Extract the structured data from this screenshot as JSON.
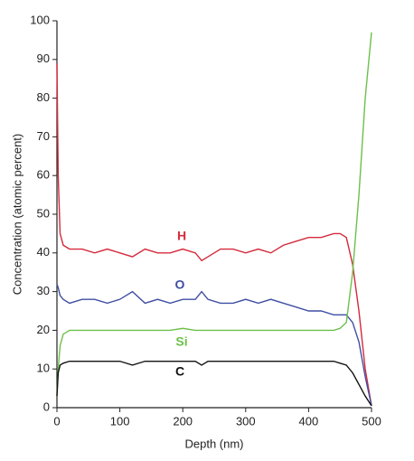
{
  "chart_data": {
    "type": "line",
    "x_label": "Depth (nm)",
    "y_label": "Concentration (atomic percent)",
    "x": [
      0,
      2,
      5,
      10,
      20,
      40,
      60,
      80,
      100,
      120,
      140,
      160,
      180,
      200,
      220,
      230,
      240,
      260,
      280,
      300,
      320,
      340,
      360,
      380,
      400,
      420,
      440,
      450,
      460,
      470,
      480,
      490,
      500
    ],
    "series": [
      {
        "name": "H",
        "color": "#d42a3c",
        "values": [
          89,
          60,
          45,
          42,
          41,
          41,
          40,
          41,
          40,
          39,
          41,
          40,
          40,
          41,
          40,
          38,
          39,
          41,
          41,
          40,
          41,
          40,
          42,
          43,
          44,
          44,
          45,
          45,
          44,
          37,
          25,
          10,
          0.5
        ]
      },
      {
        "name": "O",
        "color": "#3f4fa3",
        "values": [
          32,
          31,
          29,
          28,
          27,
          28,
          28,
          27,
          28,
          30,
          27,
          28,
          27,
          28,
          28,
          30,
          28,
          27,
          27,
          28,
          27,
          28,
          27,
          26,
          25,
          25,
          24,
          24,
          24,
          22,
          17,
          8,
          0.5
        ]
      },
      {
        "name": "Si",
        "color": "#6cc04a",
        "values": [
          3,
          10,
          16,
          19,
          20,
          20,
          20,
          20,
          20,
          20,
          20,
          20,
          20,
          20.5,
          20,
          20,
          20,
          20,
          20,
          20,
          20,
          20,
          20,
          20,
          20,
          20,
          20,
          20.5,
          22,
          35,
          55,
          80,
          97
        ]
      },
      {
        "name": "C",
        "color": "#111111",
        "values": [
          3,
          9,
          11,
          11.5,
          12,
          12,
          12,
          12,
          12,
          11,
          12,
          12,
          12,
          12,
          12,
          11,
          12,
          12,
          12,
          12,
          12,
          12,
          12,
          12,
          12,
          12,
          12,
          11.5,
          11,
          9,
          6,
          3,
          0.5
        ]
      }
    ],
    "xlim": [
      0,
      500
    ],
    "xticks": [
      0,
      100,
      200,
      300,
      400,
      500
    ],
    "ylim": [
      0,
      100
    ],
    "yticks": [
      0,
      10,
      20,
      30,
      40,
      50,
      60,
      70,
      80,
      90,
      100
    ]
  }
}
